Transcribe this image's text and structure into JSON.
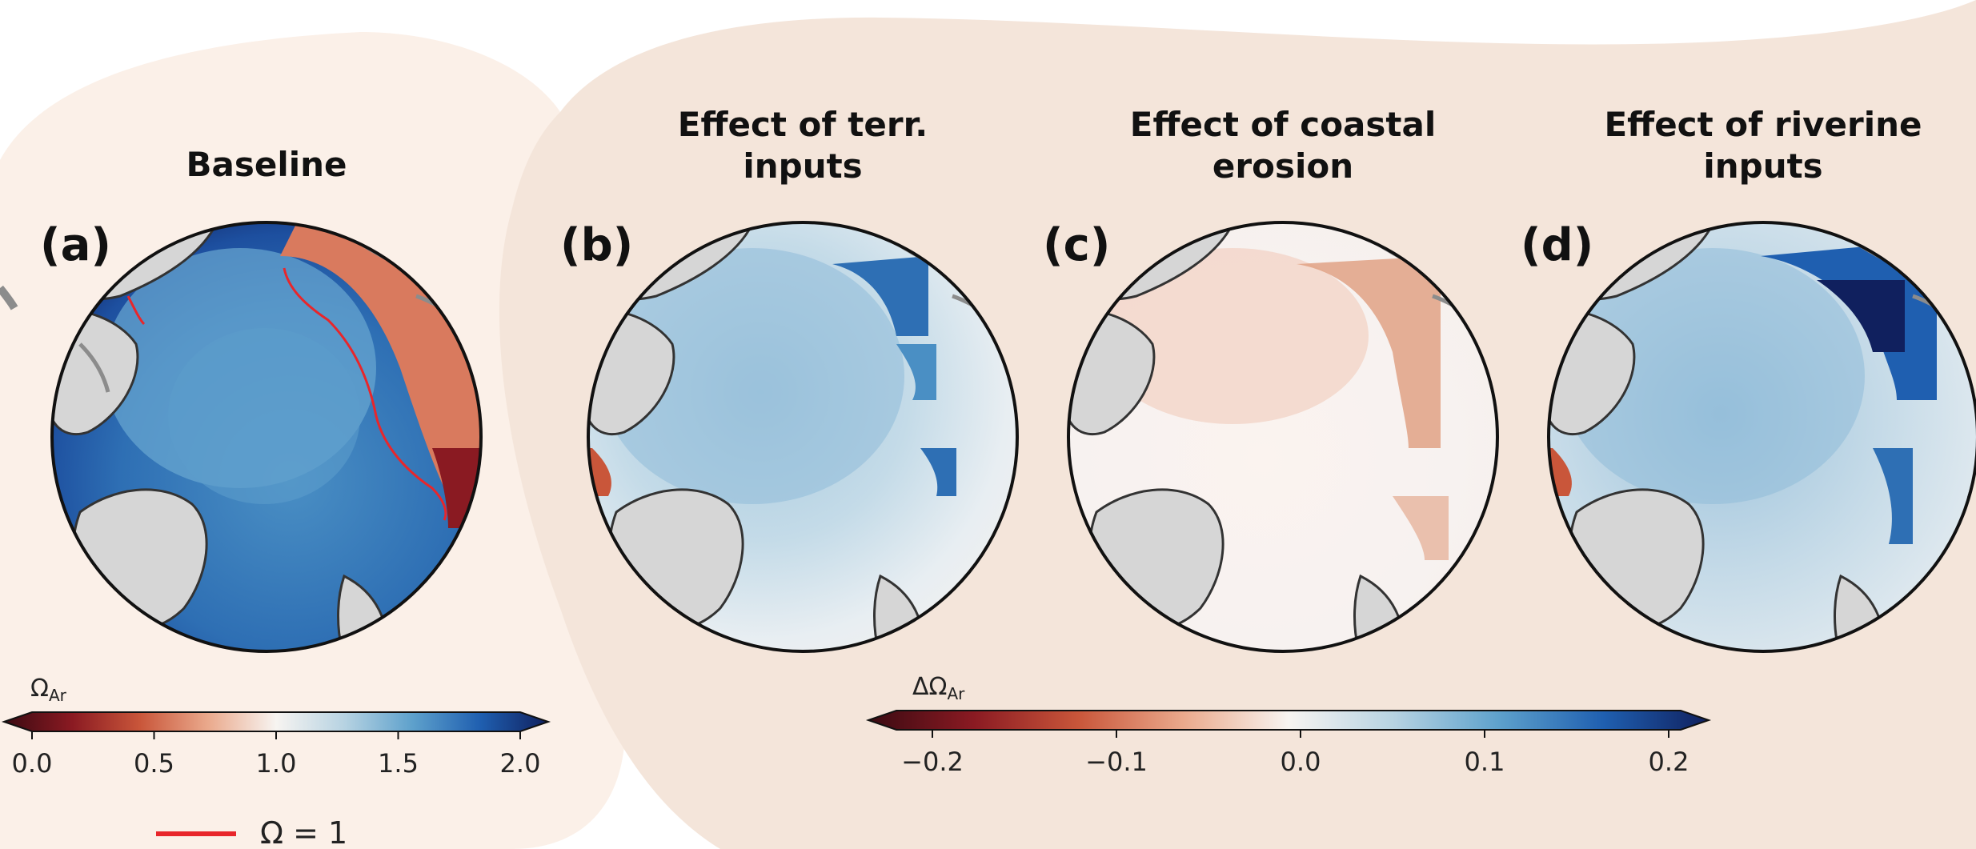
{
  "panels": [
    {
      "letter": "(a)",
      "title_lines": [
        "Baseline"
      ],
      "field": "baseline"
    },
    {
      "letter": "(b)",
      "title_lines": [
        "Effect of terr.",
        "inputs"
      ],
      "field": "terr"
    },
    {
      "letter": "(c)",
      "title_lines": [
        "Effect of coastal",
        "erosion"
      ],
      "field": "erosion"
    },
    {
      "letter": "(d)",
      "title_lines": [
        "Effect of riverine",
        "inputs"
      ],
      "field": "riverine"
    }
  ],
  "colorbar_left": {
    "label_main": "Ω",
    "label_sub": "Ar",
    "ticks": [
      "0.0",
      "0.5",
      "1.0",
      "1.5",
      "2.0"
    ],
    "range": [
      0.0,
      2.0
    ]
  },
  "colorbar_right": {
    "label_main": "ΔΩ",
    "label_sub": "Ar",
    "ticks": [
      "−0.2",
      "−0.1",
      "0.0",
      "0.1",
      "0.2"
    ],
    "range": [
      -0.2,
      0.2
    ]
  },
  "legend": {
    "text": "Ω = 1",
    "line_color": "#e8262b"
  },
  "colors": {
    "bg_left": "#fbf0e8",
    "bg_right": "#f4e5da",
    "land": "#d6d6d6",
    "coast": "#333333",
    "river": "#8c8c8c",
    "cmap": [
      "#3a0a12",
      "#8a1a22",
      "#c9563a",
      "#eaa98c",
      "#f7f4f1",
      "#b7d3e2",
      "#5ea1cc",
      "#1f5fb0",
      "#10205e"
    ]
  }
}
